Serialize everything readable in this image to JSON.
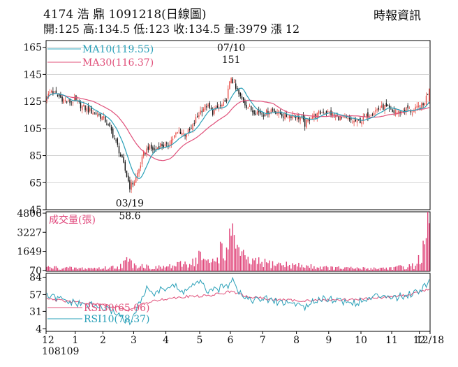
{
  "chart_data": {
    "type": "candlestick",
    "header": {
      "stock_line": "4174  浩  鼎 1091218(日線圖)",
      "quote_line": "開:125 高:134.5 低:123 收:134.5 量:3979 漲 12",
      "source": "時報資訊"
    },
    "colors": {
      "up": "#e8504a",
      "down": "#111111",
      "ma10": "#2aa0b8",
      "ma30": "#e0507a",
      "volume": "#e0457a",
      "rsi30": "#e0507a",
      "rsi10": "#2aa0b8",
      "grid": "#bbbbbb",
      "frame": "#000000"
    },
    "price_panel": {
      "y_ticks": [
        165,
        145,
        125,
        105,
        85,
        65,
        45
      ],
      "ylim": [
        45,
        170
      ],
      "legend": [
        {
          "label": "MA10(119.55)",
          "color": "#2aa0b8"
        },
        {
          "label": "MA30(116.37)",
          "color": "#e0507a"
        }
      ],
      "annotations": [
        {
          "label_top": "07/10",
          "label_bottom": "151",
          "x": 120,
          "price": 151
        },
        {
          "label_top": "03/19",
          "label_bottom": "58.6",
          "x": 54,
          "price": 58.6
        }
      ]
    },
    "volume_panel": {
      "title": "成交量(張)",
      "y_ticks": [
        4806,
        3227,
        1649,
        70
      ],
      "ylim": [
        0,
        4806
      ]
    },
    "rsi_panel": {
      "y_ticks": [
        84,
        57,
        31,
        4
      ],
      "ylim": [
        0,
        90
      ],
      "legend": [
        {
          "label": "RSI30(65.06)",
          "color": "#e0507a"
        },
        {
          "label": "RSI10(78.37)",
          "color": "#2aa0b8"
        }
      ]
    },
    "x_axis": {
      "count": 250,
      "tick_labels": [
        {
          "label": "12",
          "x": 0
        },
        {
          "label": "1",
          "x": 19
        },
        {
          "label": "2",
          "x": 37
        },
        {
          "label": "3",
          "x": 57
        },
        {
          "label": "4",
          "x": 78
        },
        {
          "label": "5",
          "x": 100
        },
        {
          "label": "6",
          "x": 120
        },
        {
          "label": "7",
          "x": 141
        },
        {
          "label": "8",
          "x": 163
        },
        {
          "label": "9",
          "x": 184
        },
        {
          "label": "10",
          "x": 205
        },
        {
          "label": "11",
          "x": 225
        },
        {
          "label": "12",
          "x": 243
        },
        {
          "label": "12/18",
          "x": 250
        }
      ],
      "sub_label": "108109"
    },
    "close_keyframes": [
      [
        0,
        128
      ],
      [
        3,
        133
      ],
      [
        6,
        130
      ],
      [
        10,
        127
      ],
      [
        14,
        124
      ],
      [
        18,
        126
      ],
      [
        22,
        122
      ],
      [
        26,
        119
      ],
      [
        30,
        117
      ],
      [
        34,
        115
      ],
      [
        38,
        111
      ],
      [
        42,
        103
      ],
      [
        46,
        92
      ],
      [
        50,
        78
      ],
      [
        54,
        62
      ],
      [
        57,
        66
      ],
      [
        60,
        75
      ],
      [
        63,
        86
      ],
      [
        66,
        91
      ],
      [
        70,
        89
      ],
      [
        74,
        93
      ],
      [
        78,
        92
      ],
      [
        82,
        98
      ],
      [
        86,
        103
      ],
      [
        90,
        101
      ],
      [
        94,
        104
      ],
      [
        97,
        112
      ],
      [
        100,
        118
      ],
      [
        104,
        122
      ],
      [
        108,
        117
      ],
      [
        112,
        121
      ],
      [
        116,
        123
      ],
      [
        120,
        143
      ],
      [
        123,
        134
      ],
      [
        126,
        128
      ],
      [
        130,
        122
      ],
      [
        134,
        118
      ],
      [
        138,
        117
      ],
      [
        142,
        116
      ],
      [
        146,
        119
      ],
      [
        150,
        117
      ],
      [
        155,
        114
      ],
      [
        160,
        115
      ],
      [
        165,
        113
      ],
      [
        168,
        108
      ],
      [
        172,
        114
      ],
      [
        176,
        115
      ],
      [
        180,
        118
      ],
      [
        185,
        116
      ],
      [
        190,
        113
      ],
      [
        195,
        112
      ],
      [
        200,
        110
      ],
      [
        205,
        111
      ],
      [
        210,
        116
      ],
      [
        215,
        119
      ],
      [
        220,
        121
      ],
      [
        225,
        117
      ],
      [
        229,
        117
      ],
      [
        232,
        118
      ],
      [
        235,
        120
      ],
      [
        238,
        117
      ],
      [
        241,
        120
      ],
      [
        245,
        122
      ],
      [
        249,
        134.5
      ]
    ],
    "rsi10_keyframes": [
      [
        0,
        55
      ],
      [
        8,
        50
      ],
      [
        15,
        45
      ],
      [
        22,
        42
      ],
      [
        30,
        40
      ],
      [
        38,
        35
      ],
      [
        45,
        30
      ],
      [
        50,
        20
      ],
      [
        54,
        12
      ],
      [
        58,
        30
      ],
      [
        62,
        55
      ],
      [
        66,
        68
      ],
      [
        70,
        58
      ],
      [
        76,
        66
      ],
      [
        82,
        72
      ],
      [
        88,
        60
      ],
      [
        94,
        70
      ],
      [
        100,
        75
      ],
      [
        106,
        60
      ],
      [
        112,
        66
      ],
      [
        118,
        72
      ],
      [
        121,
        86
      ],
      [
        125,
        62
      ],
      [
        130,
        52
      ],
      [
        136,
        48
      ],
      [
        142,
        50
      ],
      [
        150,
        46
      ],
      [
        158,
        44
      ],
      [
        165,
        42
      ],
      [
        170,
        36
      ],
      [
        175,
        50
      ],
      [
        182,
        52
      ],
      [
        190,
        48
      ],
      [
        198,
        44
      ],
      [
        205,
        46
      ],
      [
        212,
        52
      ],
      [
        220,
        58
      ],
      [
        228,
        52
      ],
      [
        236,
        58
      ],
      [
        243,
        64
      ],
      [
        249,
        78.37
      ]
    ],
    "rsi30_keyframes": [
      [
        0,
        50
      ],
      [
        15,
        46
      ],
      [
        30,
        43
      ],
      [
        45,
        38
      ],
      [
        54,
        32
      ],
      [
        62,
        42
      ],
      [
        75,
        50
      ],
      [
        90,
        54
      ],
      [
        105,
        55
      ],
      [
        120,
        62
      ],
      [
        130,
        54
      ],
      [
        145,
        50
      ],
      [
        160,
        48
      ],
      [
        175,
        48
      ],
      [
        190,
        49
      ],
      [
        205,
        50
      ],
      [
        220,
        53
      ],
      [
        235,
        56
      ],
      [
        249,
        65.06
      ]
    ],
    "volume_keyframes": [
      [
        0,
        350
      ],
      [
        20,
        250
      ],
      [
        40,
        300
      ],
      [
        48,
        500
      ],
      [
        52,
        900
      ],
      [
        56,
        700
      ],
      [
        70,
        300
      ],
      [
        84,
        500
      ],
      [
        96,
        900
      ],
      [
        100,
        1500
      ],
      [
        104,
        700
      ],
      [
        110,
        1000
      ],
      [
        114,
        2300
      ],
      [
        118,
        1400
      ],
      [
        121,
        4806
      ],
      [
        124,
        2000
      ],
      [
        130,
        900
      ],
      [
        145,
        700
      ],
      [
        165,
        500
      ],
      [
        185,
        300
      ],
      [
        205,
        250
      ],
      [
        225,
        300
      ],
      [
        240,
        500
      ],
      [
        245,
        1800
      ],
      [
        249,
        3979
      ]
    ]
  }
}
